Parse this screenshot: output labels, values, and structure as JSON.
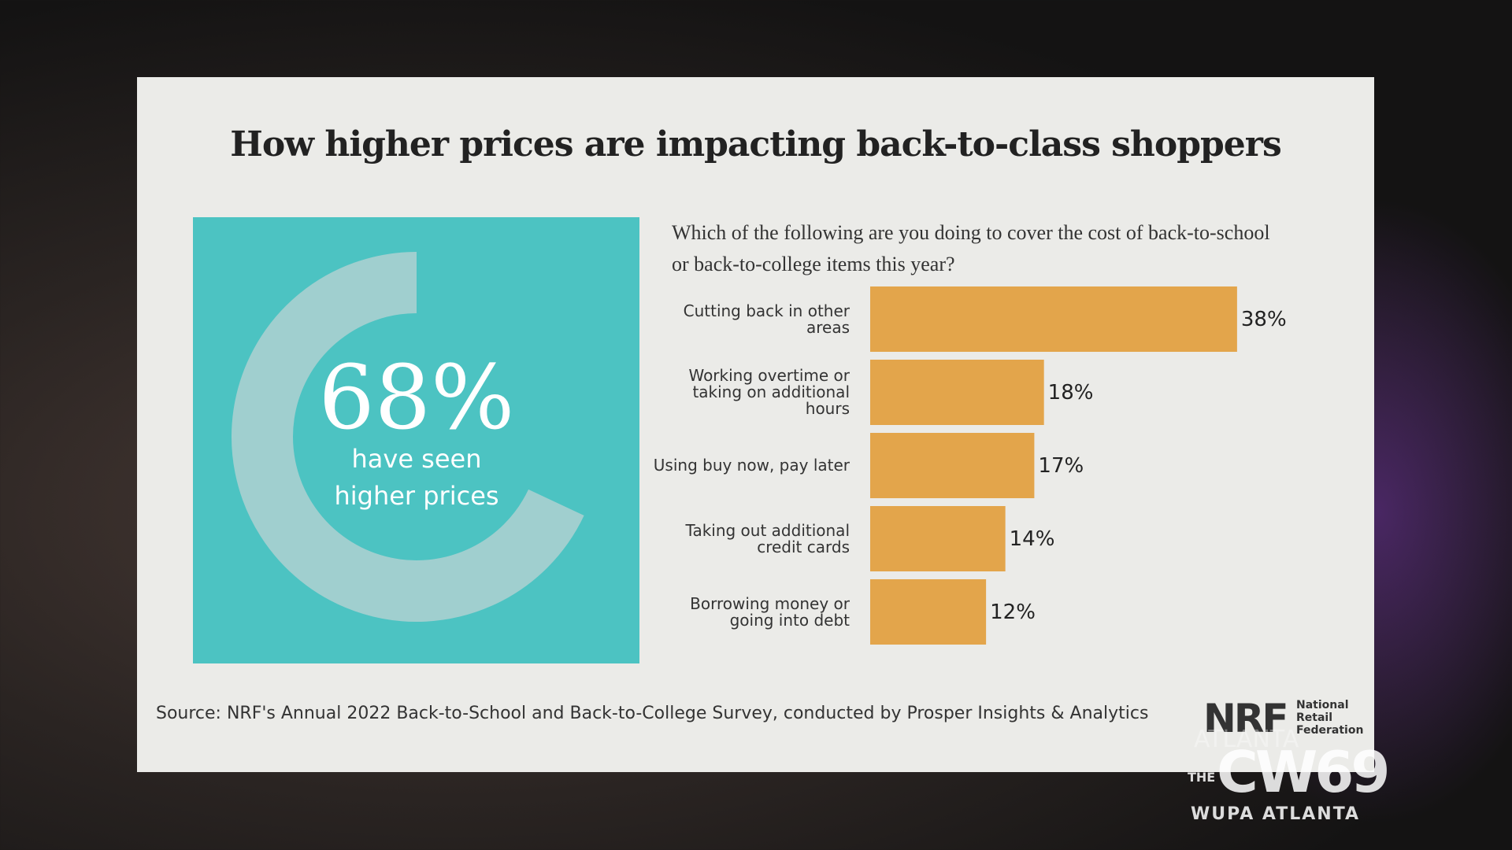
{
  "title": "How higher prices are impacting back-to-class shoppers",
  "chart_data": [
    {
      "type": "donut",
      "values": [
        68
      ],
      "value_labels": [
        "68%"
      ],
      "label": "have seen higher prices",
      "color": "#a0cfcf",
      "background": "#4cc3c2"
    },
    {
      "type": "bar",
      "orientation": "horizontal",
      "subtitle": "Which of the following are you doing to cover the cost of back-to-school or back-to-college items this year?",
      "categories": [
        "Cutting back in other areas",
        "Working overtime or taking on additional hours",
        "Using buy now, pay later",
        "Taking out additional credit cards",
        "Borrowing money or going into debt"
      ],
      "values": [
        38,
        18,
        17,
        14,
        12
      ],
      "value_labels": [
        "38%",
        "18%",
        "17%",
        "14%",
        "12%"
      ],
      "color": "#e3a54b"
    }
  ],
  "source": "Source: NRF's Annual 2022 Back-to-School and Back-to-College Survey, conducted by Prosper Insights & Analytics",
  "logo": {
    "mark": "NRF",
    "name": "National Retail Federation"
  },
  "watermark": {
    "city": "ATLANTA",
    "network": "THE",
    "channel": "CW69",
    "station": "WUPA ATLANTA"
  }
}
